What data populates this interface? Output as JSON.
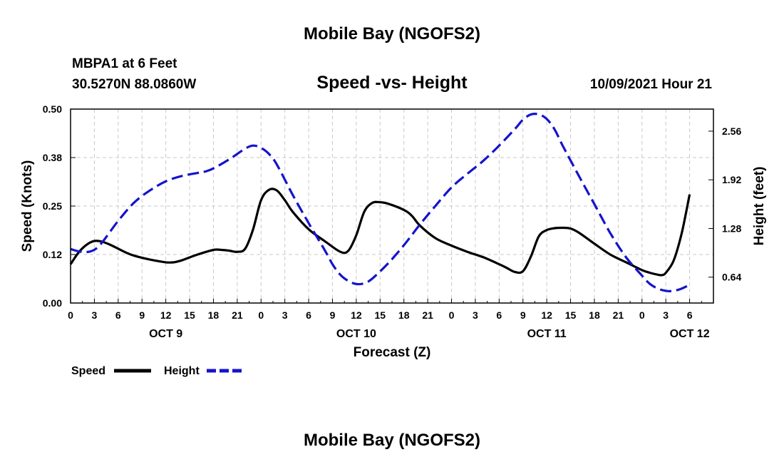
{
  "header": {
    "title": "Mobile Bay (NGOFS2)",
    "station": "MBPA1 at 6 Feet",
    "coords": "30.5270N  88.0860W",
    "subtitle": "Speed -vs- Height",
    "datetime": "10/09/2021 Hour 21"
  },
  "footer": {
    "title": "Mobile Bay (NGOFS2)"
  },
  "chart_data": {
    "type": "line",
    "title": "Speed -vs- Height",
    "xlabel": "Forecast (Z)",
    "ylabel": "Speed (Knots)",
    "ylabel_right": "Height (feet)",
    "xlim": [
      0,
      81
    ],
    "ylim": [
      0,
      0.5
    ],
    "ylim_right": [
      0.3,
      2.85
    ],
    "grid": true,
    "x_ticks": [
      {
        "x": 0,
        "label": "0"
      },
      {
        "x": 3,
        "label": "3"
      },
      {
        "x": 6,
        "label": "6"
      },
      {
        "x": 9,
        "label": "9"
      },
      {
        "x": 12,
        "label": "12"
      },
      {
        "x": 15,
        "label": "15"
      },
      {
        "x": 18,
        "label": "18"
      },
      {
        "x": 21,
        "label": "21"
      },
      {
        "x": 24,
        "label": "0"
      },
      {
        "x": 27,
        "label": "3"
      },
      {
        "x": 30,
        "label": "6"
      },
      {
        "x": 33,
        "label": "9"
      },
      {
        "x": 36,
        "label": "12"
      },
      {
        "x": 39,
        "label": "15"
      },
      {
        "x": 42,
        "label": "18"
      },
      {
        "x": 45,
        "label": "21"
      },
      {
        "x": 48,
        "label": "0"
      },
      {
        "x": 51,
        "label": "3"
      },
      {
        "x": 54,
        "label": "6"
      },
      {
        "x": 57,
        "label": "9"
      },
      {
        "x": 60,
        "label": "12"
      },
      {
        "x": 63,
        "label": "15"
      },
      {
        "x": 66,
        "label": "18"
      },
      {
        "x": 69,
        "label": "21"
      },
      {
        "x": 72,
        "label": "0"
      },
      {
        "x": 75,
        "label": "3"
      },
      {
        "x": 78,
        "label": "6"
      }
    ],
    "date_labels": [
      {
        "x": 12,
        "label": "OCT 9"
      },
      {
        "x": 36,
        "label": "OCT 10"
      },
      {
        "x": 60,
        "label": "OCT 11"
      },
      {
        "x": 78,
        "label": "OCT 12"
      }
    ],
    "y_ticks": [
      {
        "v": 0.0,
        "label": "0.00"
      },
      {
        "v": 0.125,
        "label": "0.12"
      },
      {
        "v": 0.25,
        "label": "0.25"
      },
      {
        "v": 0.375,
        "label": "0.38"
      },
      {
        "v": 0.5,
        "label": "0.50"
      }
    ],
    "y_ticks_right": [
      {
        "v": 0.64,
        "label": "0.64"
      },
      {
        "v": 1.28,
        "label": "1.28"
      },
      {
        "v": 1.92,
        "label": "1.92"
      },
      {
        "v": 2.56,
        "label": "2.56"
      }
    ],
    "series": [
      {
        "name": "Speed",
        "axis": "left",
        "color": "#000000",
        "dash": "solid",
        "points": [
          [
            0,
            0.1
          ],
          [
            1,
            0.13
          ],
          [
            2,
            0.15
          ],
          [
            3,
            0.16
          ],
          [
            4,
            0.158
          ],
          [
            5,
            0.15
          ],
          [
            6,
            0.14
          ],
          [
            7,
            0.13
          ],
          [
            8,
            0.122
          ],
          [
            10,
            0.112
          ],
          [
            12,
            0.105
          ],
          [
            13,
            0.105
          ],
          [
            14,
            0.11
          ],
          [
            16,
            0.125
          ],
          [
            18,
            0.137
          ],
          [
            19,
            0.137
          ],
          [
            20,
            0.135
          ],
          [
            21,
            0.132
          ],
          [
            22,
            0.14
          ],
          [
            23,
            0.19
          ],
          [
            24,
            0.265
          ],
          [
            25,
            0.292
          ],
          [
            26,
            0.29
          ],
          [
            27,
            0.265
          ],
          [
            28,
            0.235
          ],
          [
            30,
            0.19
          ],
          [
            32,
            0.16
          ],
          [
            34,
            0.132
          ],
          [
            35,
            0.135
          ],
          [
            36,
            0.175
          ],
          [
            37,
            0.235
          ],
          [
            38,
            0.258
          ],
          [
            39,
            0.26
          ],
          [
            40,
            0.256
          ],
          [
            42,
            0.24
          ],
          [
            43,
            0.225
          ],
          [
            44,
            0.2
          ],
          [
            46,
            0.167
          ],
          [
            48,
            0.148
          ],
          [
            50,
            0.132
          ],
          [
            52,
            0.118
          ],
          [
            54,
            0.1
          ],
          [
            55,
            0.09
          ],
          [
            56,
            0.08
          ],
          [
            57,
            0.082
          ],
          [
            58,
            0.12
          ],
          [
            59,
            0.172
          ],
          [
            60,
            0.188
          ],
          [
            61,
            0.193
          ],
          [
            62,
            0.194
          ],
          [
            63,
            0.192
          ],
          [
            64,
            0.182
          ],
          [
            66,
            0.153
          ],
          [
            68,
            0.125
          ],
          [
            70,
            0.105
          ],
          [
            72,
            0.085
          ],
          [
            73,
            0.078
          ],
          [
            74,
            0.073
          ],
          [
            74.5,
            0.072
          ],
          [
            75,
            0.078
          ],
          [
            76,
            0.11
          ],
          [
            77,
            0.18
          ],
          [
            78,
            0.28
          ]
        ]
      },
      {
        "name": "Height",
        "axis": "right",
        "color": "#1414cc",
        "dash": "dashed",
        "points": [
          [
            0,
            1.01
          ],
          [
            1,
            0.98
          ],
          [
            2,
            0.97
          ],
          [
            3,
            1.0
          ],
          [
            4,
            1.1
          ],
          [
            6,
            1.38
          ],
          [
            8,
            1.62
          ],
          [
            10,
            1.78
          ],
          [
            12,
            1.9
          ],
          [
            14,
            1.97
          ],
          [
            16,
            2.01
          ],
          [
            17,
            2.03
          ],
          [
            18,
            2.07
          ],
          [
            20,
            2.19
          ],
          [
            22,
            2.33
          ],
          [
            23,
            2.37
          ],
          [
            24,
            2.34
          ],
          [
            25,
            2.26
          ],
          [
            26,
            2.12
          ],
          [
            28,
            1.72
          ],
          [
            30,
            1.35
          ],
          [
            32,
            1.0
          ],
          [
            33,
            0.81
          ],
          [
            34,
            0.67
          ],
          [
            35,
            0.59
          ],
          [
            36,
            0.55
          ],
          [
            37,
            0.56
          ],
          [
            38,
            0.62
          ],
          [
            40,
            0.82
          ],
          [
            42,
            1.06
          ],
          [
            44,
            1.33
          ],
          [
            46,
            1.58
          ],
          [
            48,
            1.82
          ],
          [
            50,
            2.0
          ],
          [
            52,
            2.17
          ],
          [
            54,
            2.37
          ],
          [
            56,
            2.59
          ],
          [
            57,
            2.71
          ],
          [
            58,
            2.78
          ],
          [
            59,
            2.78
          ],
          [
            60,
            2.72
          ],
          [
            61,
            2.58
          ],
          [
            62,
            2.37
          ],
          [
            64,
            1.98
          ],
          [
            66,
            1.6
          ],
          [
            68,
            1.22
          ],
          [
            70,
            0.9
          ],
          [
            72,
            0.66
          ],
          [
            73,
            0.55
          ],
          [
            74,
            0.49
          ],
          [
            75,
            0.46
          ],
          [
            76,
            0.46
          ],
          [
            77,
            0.49
          ],
          [
            78,
            0.54
          ]
        ]
      }
    ],
    "legend": [
      {
        "name": "Speed",
        "color": "#000000",
        "dash": "solid"
      },
      {
        "name": "Height",
        "color": "#1414cc",
        "dash": "dashed"
      }
    ]
  }
}
